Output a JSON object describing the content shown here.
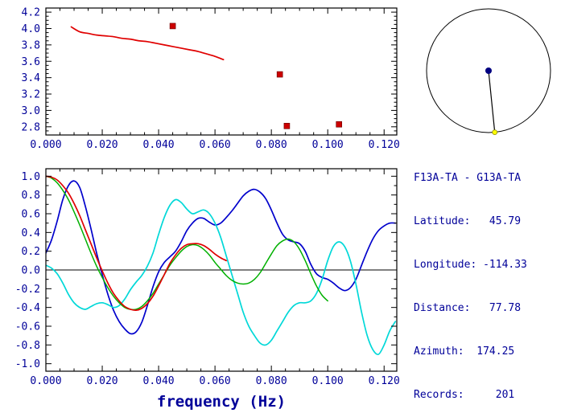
{
  "colors": {
    "frame": "#000000",
    "axis_text": "#000099",
    "zero_line": "#000000",
    "dispersion_curve": "#e00000",
    "picked_points": "#cc0000",
    "coherence_blue": "#0000cc",
    "coherence_cyan": "#00d8d8",
    "coherence_green": "#00b000",
    "coherence_red": "#e00000",
    "compass_center_dot": "#000080",
    "compass_end_dot": "#ffff00"
  },
  "info": {
    "lines": [
      "F13A-TA - G13A-TA",
      "Latitude:   45.79",
      "Longitude: -114.33",
      "Distance:   77.78",
      "Azimuth:  174.25",
      "Records:     201"
    ]
  },
  "compass": {
    "azimuth_deg": 174.25
  },
  "chart_data": [
    {
      "id": "dispersion",
      "type": "line",
      "title": "",
      "xlabel": "",
      "ylabel": "",
      "xlim": [
        0,
        0.1245
      ],
      "ylim": [
        2.7,
        4.25
      ],
      "x_minor_step": 0.005,
      "y_minor_step": 0.05,
      "grid": false,
      "xticks": {
        "values": [
          0,
          0.02,
          0.04,
          0.06,
          0.08,
          0.1,
          0.12
        ],
        "labels": [
          "0.000",
          "0.020",
          "0.040",
          "0.060",
          "0.080",
          "0.100",
          "0.120"
        ]
      },
      "yticks": {
        "values": [
          2.8,
          3.0,
          3.2,
          3.4,
          3.6,
          3.8,
          4.0,
          4.2
        ],
        "labels": [
          "2.8",
          "3.0",
          "3.2",
          "3.4",
          "3.6",
          "3.8",
          "4.0",
          "4.2"
        ]
      },
      "series": [
        {
          "name": "phase-velocity-dispersion",
          "color": "#e00000",
          "width": 1.7,
          "x0": 0.009,
          "dx": 0.003,
          "y": [
            4.02,
            3.96,
            3.94,
            3.92,
            3.91,
            3.9,
            3.88,
            3.87,
            3.85,
            3.84,
            3.82,
            3.8,
            3.78,
            3.76,
            3.74,
            3.72,
            3.69,
            3.66,
            3.62
          ]
        }
      ],
      "markers": [
        {
          "name": "picked-points",
          "color": "#cc0000",
          "shape": "square",
          "size": 7,
          "points": [
            [
              0.045,
              4.03
            ],
            [
              0.083,
              3.44
            ],
            [
              0.0855,
              2.81
            ],
            [
              0.104,
              2.83
            ]
          ]
        }
      ]
    },
    {
      "id": "coherence",
      "type": "line",
      "title": "",
      "xlabel": "frequency (Hz)",
      "ylabel": "",
      "xlim": [
        0,
        0.1245
      ],
      "ylim": [
        -1.08,
        1.08
      ],
      "zero_line": true,
      "x_minor_step": 0.005,
      "y_minor_step": 0.1,
      "grid": false,
      "xticks": {
        "values": [
          0,
          0.02,
          0.04,
          0.06,
          0.08,
          0.1,
          0.12
        ],
        "labels": [
          "0.000",
          "0.020",
          "0.040",
          "0.060",
          "0.080",
          "0.100",
          "0.120"
        ]
      },
      "yticks": {
        "values": [
          1.0,
          0.8,
          0.6,
          0.4,
          0.2,
          0.0,
          -0.2,
          -0.4,
          -0.6,
          -0.8,
          -1.0
        ],
        "labels": [
          "1.0",
          "0.8",
          "0.6",
          "0.4",
          "0.2",
          "0.0",
          "-0.2",
          "-0.4",
          "-0.6",
          "-0.8",
          "-1.0"
        ]
      },
      "series": [
        {
          "name": "coherence-blue",
          "color": "#0000cc",
          "width": 1.7,
          "x0": 0,
          "dx": 0.002,
          "y": [
            0.18,
            0.32,
            0.52,
            0.75,
            0.9,
            0.95,
            0.88,
            0.68,
            0.44,
            0.18,
            -0.05,
            -0.26,
            -0.43,
            -0.55,
            -0.63,
            -0.68,
            -0.66,
            -0.56,
            -0.38,
            -0.18,
            -0.02,
            0.08,
            0.14,
            0.2,
            0.3,
            0.42,
            0.5,
            0.55,
            0.55,
            0.51,
            0.48,
            0.5,
            0.56,
            0.63,
            0.71,
            0.79,
            0.84,
            0.86,
            0.83,
            0.76,
            0.64,
            0.5,
            0.38,
            0.32,
            0.3,
            0.28,
            0.2,
            0.06,
            -0.04,
            -0.08,
            -0.1,
            -0.14,
            -0.19,
            -0.22,
            -0.19,
            -0.1,
            0.05,
            0.2,
            0.33,
            0.42,
            0.47,
            0.5,
            0.5
          ]
        },
        {
          "name": "coherence-cyan",
          "color": "#00d8d8",
          "width": 1.7,
          "x0": 0,
          "dx": 0.002,
          "y": [
            0.05,
            0.02,
            -0.04,
            -0.14,
            -0.26,
            -0.35,
            -0.4,
            -0.42,
            -0.39,
            -0.36,
            -0.35,
            -0.37,
            -0.4,
            -0.38,
            -0.31,
            -0.21,
            -0.13,
            -0.06,
            0.04,
            0.18,
            0.38,
            0.56,
            0.69,
            0.75,
            0.72,
            0.65,
            0.6,
            0.62,
            0.64,
            0.6,
            0.5,
            0.35,
            0.15,
            -0.05,
            -0.25,
            -0.45,
            -0.6,
            -0.7,
            -0.78,
            -0.8,
            -0.75,
            -0.65,
            -0.55,
            -0.45,
            -0.38,
            -0.35,
            -0.35,
            -0.33,
            -0.25,
            -0.1,
            0.1,
            0.25,
            0.3,
            0.25,
            0.1,
            -0.15,
            -0.45,
            -0.7,
            -0.85,
            -0.9,
            -0.8,
            -0.65,
            -0.55
          ]
        },
        {
          "name": "coherence-green",
          "color": "#00b000",
          "width": 1.5,
          "x0": 0,
          "dx": 0.002,
          "y": [
            1.0,
            0.98,
            0.93,
            0.85,
            0.75,
            0.62,
            0.48,
            0.33,
            0.18,
            0.04,
            -0.08,
            -0.19,
            -0.28,
            -0.35,
            -0.4,
            -0.42,
            -0.42,
            -0.39,
            -0.33,
            -0.25,
            -0.15,
            -0.05,
            0.05,
            0.13,
            0.2,
            0.25,
            0.27,
            0.26,
            0.22,
            0.16,
            0.08,
            0.01,
            -0.06,
            -0.11,
            -0.14,
            -0.15,
            -0.14,
            -0.1,
            -0.03,
            0.07,
            0.17,
            0.26,
            0.31,
            0.33,
            0.3,
            0.22,
            0.1,
            -0.04,
            -0.17,
            -0.27,
            -0.33
          ]
        },
        {
          "name": "coherence-red",
          "color": "#e00000",
          "width": 1.7,
          "x0": 0,
          "dx": 0.002,
          "y": [
            1.0,
            0.99,
            0.96,
            0.9,
            0.82,
            0.71,
            0.58,
            0.43,
            0.28,
            0.13,
            -0.01,
            -0.14,
            -0.25,
            -0.33,
            -0.39,
            -0.42,
            -0.43,
            -0.41,
            -0.36,
            -0.28,
            -0.17,
            -0.05,
            0.07,
            0.16,
            0.23,
            0.27,
            0.28,
            0.28,
            0.26,
            0.22,
            0.17,
            0.13,
            0.1
          ]
        }
      ],
      "markers": []
    }
  ]
}
